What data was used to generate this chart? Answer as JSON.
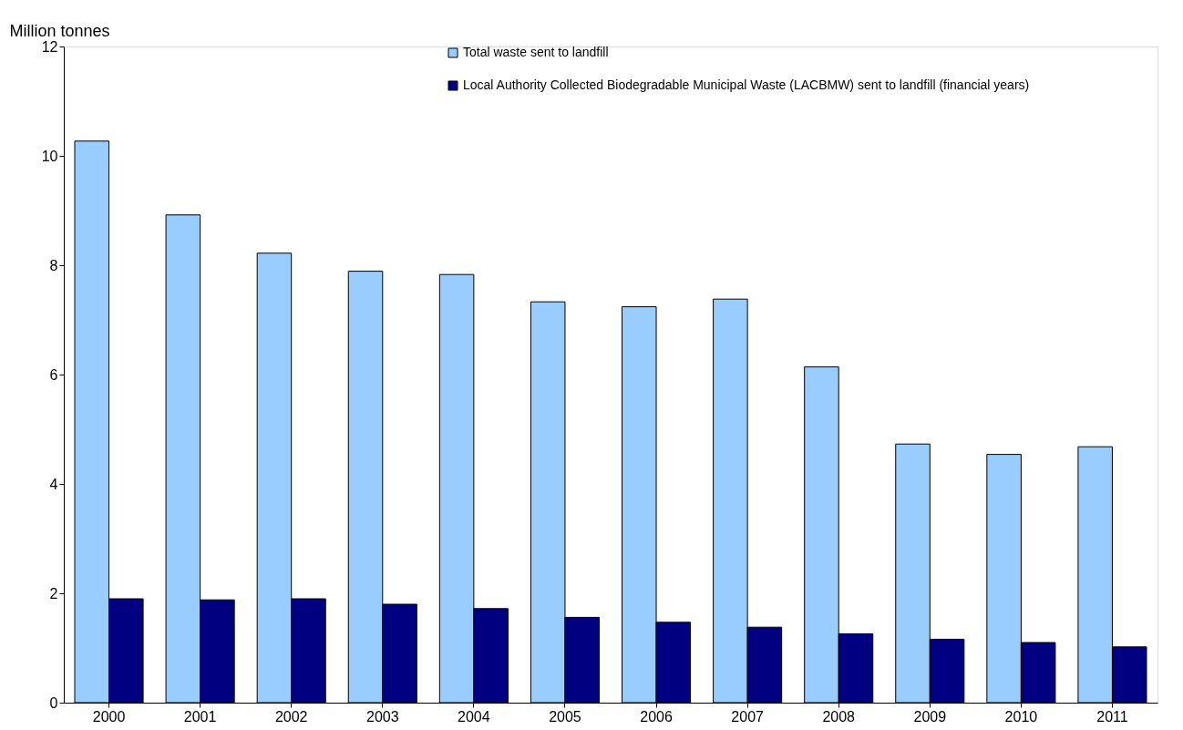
{
  "chart_data": {
    "type": "bar",
    "ylabel": "Million tonnes",
    "categories": [
      "2000",
      "2001",
      "2002",
      "2003",
      "2004",
      "2005",
      "2006",
      "2007",
      "2008",
      "2009",
      "2010",
      "2011"
    ],
    "series": [
      {
        "name": "Total waste sent to landfill",
        "color": "#99ccff",
        "values": [
          10.27,
          8.92,
          8.22,
          7.89,
          7.83,
          7.33,
          7.24,
          7.38,
          6.14,
          4.73,
          4.54,
          4.68
        ]
      },
      {
        "name": "Local Authority Collected Biodegradable Municipal Waste (LACBMW) sent to landfill (financial years)",
        "color": "#000080",
        "values": [
          1.9,
          1.88,
          1.9,
          1.8,
          1.72,
          1.56,
          1.47,
          1.38,
          1.26,
          1.16,
          1.1,
          1.02
        ]
      }
    ],
    "ylim": [
      0,
      12
    ],
    "yticks": [
      0,
      2,
      4,
      6,
      8,
      10,
      12
    ],
    "grid": false,
    "legend": "top"
  }
}
